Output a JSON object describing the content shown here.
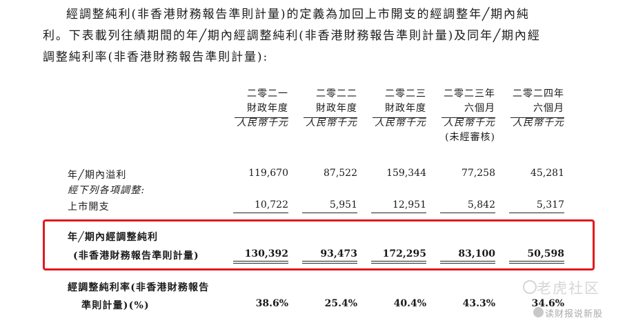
{
  "intro": {
    "line1": "經調整純利(非香港財務報告準則計量)的定義為加回上市開支的經調整年╱期內純",
    "line2": "利。下表載列往績期間的年╱期內經調整純利(非香港財務報告準則計量)及同年╱期內經",
    "line3": "調整純利率(非香港財務報告準則計量):"
  },
  "columns": [
    {
      "h1": "二零二一",
      "h2": "財政年度",
      "currency": "人民幣千元",
      "note": ""
    },
    {
      "h1": "二零二二",
      "h2": "財政年度",
      "currency": "人民幣千元",
      "note": ""
    },
    {
      "h1": "二零二三",
      "h2": "財政年度",
      "currency": "人民幣千元",
      "note": ""
    },
    {
      "h1": "二零二三年",
      "h2": "六個月",
      "currency": "人民幣千元",
      "note": "(未經審核)"
    },
    {
      "h1": "二零二四年",
      "h2": "六個月",
      "currency": "人民幣千元",
      "note": ""
    }
  ],
  "rows": {
    "profit": {
      "label": "年╱期內溢利",
      "values": [
        "119,670",
        "87,522",
        "159,344",
        "77,258",
        "45,281"
      ]
    },
    "adjust_caption": "經下列各項調整:",
    "listing": {
      "label": "上市開支",
      "values": [
        "10,722",
        "5,951",
        "12,951",
        "5,842",
        "5,317"
      ]
    },
    "adjusted": {
      "label1": "年╱期內經調整純利",
      "label2": "(非香港財務報告準則計量)",
      "values": [
        "130,392",
        "93,473",
        "172,295",
        "83,100",
        "50,598"
      ]
    },
    "margin": {
      "label1": "經調整純利率(非香港財務報告",
      "label2": "準則計量)(%)",
      "values": [
        "38.6%",
        "25.4%",
        "40.4%",
        "43.3%",
        "34.6%"
      ]
    }
  },
  "watermark": {
    "text1": "老虎社区",
    "text2": "读财报说新股"
  },
  "colors": {
    "highlight": "#e0191e"
  }
}
